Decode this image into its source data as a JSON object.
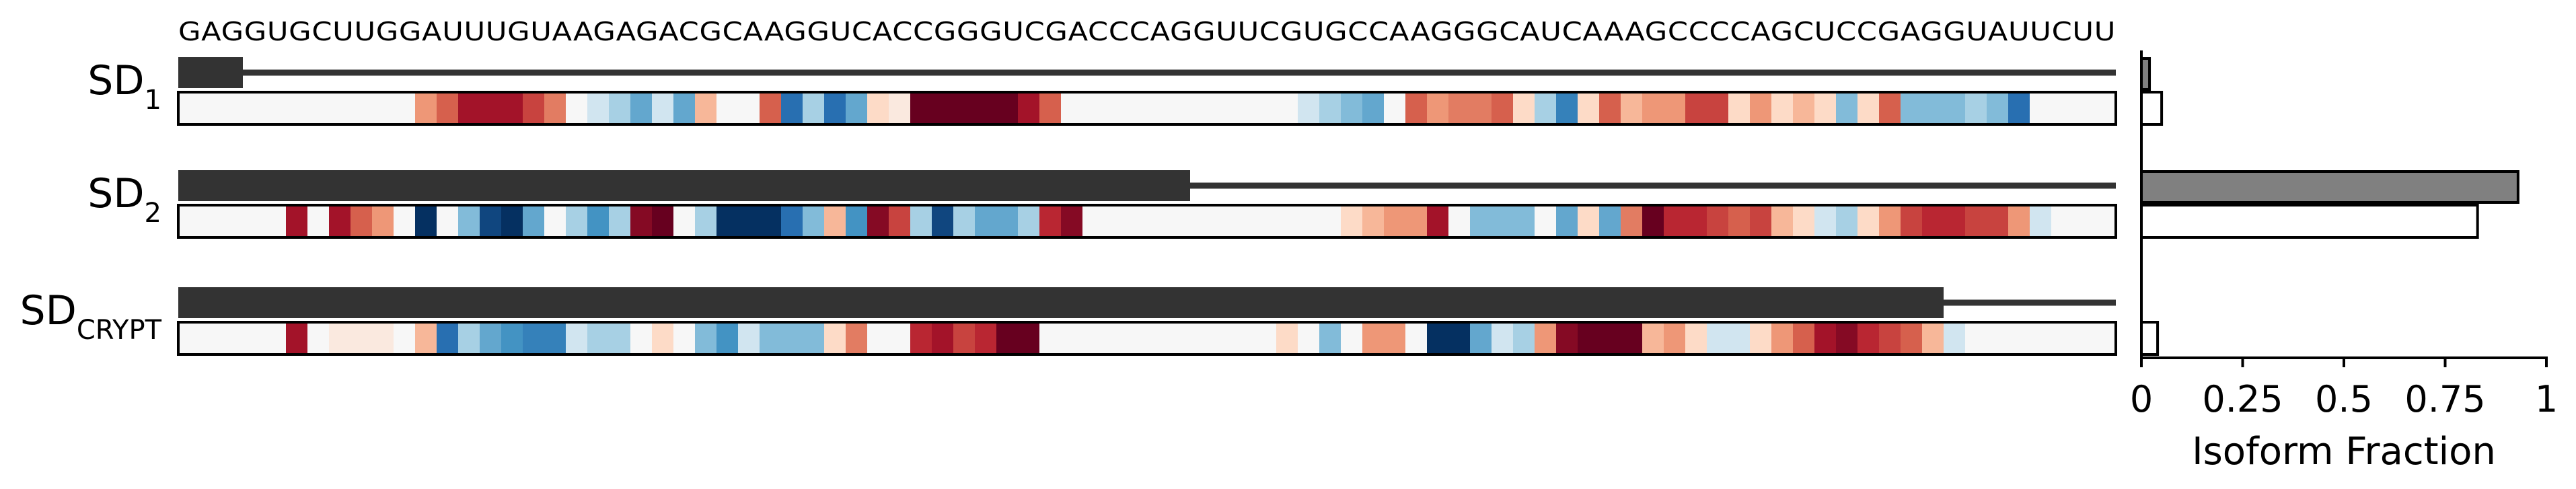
{
  "sequence": "GAGGUGCUUGGAUUUGUAAGAGACGCAAGGUCACCGGGUCGACCCAGGUUCGUGCCAAGGGCAUCAAAGCCCCAGCUCCGAGGUAUUCUU",
  "rows": [
    {
      "label_main": "SD",
      "label_sub": "1",
      "exon_end": 3
    },
    {
      "label_main": "SD",
      "label_sub": "2",
      "exon_end": 47
    },
    {
      "label_main": "SD",
      "label_sub": "CRYPT",
      "exon_end": 82
    }
  ],
  "colors": {
    "exon": "#333333",
    "predicted_bar": "#808080",
    "observed_bar": "#ffffff",
    "heatmap_low": "#053061",
    "heatmap_mid": "#f7f7f7",
    "heatmap_high": "#67001f"
  },
  "chart_data": [
    {
      "type": "heatmap",
      "colormap": "RdBu_r",
      "value_range": [
        -1,
        1
      ],
      "x_categories": "per-nucleotide position (90 positions)",
      "rows": [
        {
          "name": "SD1",
          "values": [
            0,
            0,
            0,
            0,
            0,
            0,
            0,
            0,
            0,
            0,
            0,
            0.3,
            0.5,
            0.8,
            0.8,
            0.8,
            0.6,
            0.4,
            0,
            -0.1,
            -0.2,
            -0.4,
            -0.1,
            -0.4,
            0.2,
            0,
            0,
            0.5,
            -0.7,
            -0.2,
            -0.7,
            -0.4,
            0.1,
            0.05,
            1,
            1,
            1,
            1,
            1,
            0.8,
            0.5,
            0,
            0,
            0,
            0,
            0,
            0,
            0,
            0,
            0,
            0,
            0,
            -0.1,
            -0.2,
            -0.3,
            -0.4,
            0,
            0.5,
            0.3,
            0.4,
            0.4,
            0.5,
            0.1,
            -0.2,
            -0.6,
            0.1,
            0.5,
            0.2,
            0.3,
            0.3,
            0.6,
            0.6,
            0.1,
            0.3,
            0.1,
            0.2,
            0.1,
            -0.3,
            0.1,
            0.5,
            -0.3,
            -0.3,
            -0.3,
            -0.2,
            -0.3,
            -0.7,
            0,
            0,
            0,
            0
          ]
        },
        {
          "name": "SD2",
          "values": [
            0,
            0,
            0,
            0,
            0,
            0.8,
            0,
            0.8,
            0.5,
            0.3,
            0,
            -1,
            0,
            -0.3,
            -0.9,
            -1,
            -0.4,
            0,
            -0.2,
            -0.5,
            -0.2,
            0.9,
            1,
            0,
            -0.2,
            -1,
            -1,
            -1,
            -0.7,
            -0.3,
            0.2,
            -0.5,
            0.9,
            0.6,
            -0.2,
            -0.9,
            -0.2,
            -0.4,
            -0.4,
            -0.2,
            0.7,
            0.9,
            0,
            0,
            0,
            0,
            0,
            0,
            0,
            0,
            0,
            0,
            0,
            0,
            0.1,
            0.2,
            0.3,
            0.3,
            0.8,
            0,
            -0.3,
            -0.3,
            -0.3,
            0,
            -0.4,
            0.1,
            -0.4,
            0.4,
            1,
            0.7,
            0.7,
            0.6,
            0.5,
            0.6,
            0.2,
            0.1,
            -0.1,
            -0.2,
            0.1,
            0.3,
            0.6,
            0.7,
            0.7,
            0.6,
            0.6,
            0.3,
            -0.1,
            0,
            0,
            0
          ]
        },
        {
          "name": "SDCRYPT",
          "values": [
            0,
            0,
            0,
            0,
            0,
            0.8,
            0,
            0.05,
            0.05,
            0.05,
            0,
            0.2,
            -0.7,
            -0.2,
            -0.4,
            -0.5,
            -0.6,
            -0.6,
            -0.1,
            -0.2,
            -0.2,
            0,
            0.1,
            0,
            -0.3,
            -0.5,
            -0.1,
            -0.3,
            -0.3,
            -0.3,
            0.1,
            0.4,
            0,
            0,
            0.7,
            0.8,
            0.6,
            0.7,
            1,
            1,
            0,
            0,
            0,
            0,
            0,
            0,
            0,
            0,
            0,
            0,
            0,
            0.1,
            0,
            -0.3,
            0,
            0.3,
            0.3,
            0,
            -1,
            -1,
            -0.4,
            -0.1,
            -0.2,
            0.3,
            0.9,
            1,
            1,
            1,
            0.2,
            0.3,
            0.1,
            -0.1,
            -0.1,
            0.1,
            0.3,
            0.5,
            0.8,
            0.9,
            0.7,
            0.6,
            0.5,
            0.2,
            -0.1,
            0,
            0,
            0,
            0,
            0,
            0,
            0
          ]
        }
      ]
    },
    {
      "type": "bar",
      "orientation": "horizontal",
      "categories": [
        "SD1",
        "SD2",
        "SDCRYPT"
      ],
      "series": [
        {
          "values": [
            0.02,
            0.93,
            null
          ]
        },
        {
          "values": [
            0.05,
            0.83,
            0.04
          ]
        }
      ],
      "xlabel": "Isoform Fraction",
      "xlim": [
        0,
        1
      ],
      "xticks": [
        "0",
        "0.25",
        "0.5",
        "0.75",
        "1"
      ]
    }
  ]
}
